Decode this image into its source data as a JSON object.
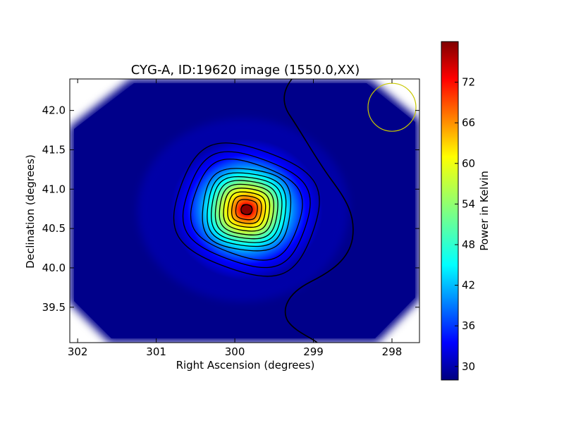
{
  "chart_data": {
    "type": "heatmap",
    "title": "CYG-A, ID:19620 image (1550.0,XX)",
    "xlabel": "Right Ascension (degrees)",
    "ylabel": "Declination (degrees)",
    "xlim": [
      302.1,
      297.65
    ],
    "ylim": [
      39.05,
      42.4
    ],
    "x_axis_inverted": true,
    "xticks": [
      302,
      301,
      300,
      299,
      298
    ],
    "xtick_labels": [
      "302",
      "301",
      "300",
      "299",
      "298"
    ],
    "yticks": [
      39.5,
      40.0,
      40.5,
      41.0,
      41.5,
      42.0
    ],
    "ytick_labels": [
      "39.5",
      "40.0",
      "40.5",
      "41.0",
      "41.5",
      "42.0"
    ],
    "colormap": "jet",
    "colorbar": {
      "label": "Power in Kelvin",
      "range": [
        28,
        78
      ],
      "ticks": [
        30,
        36,
        42,
        48,
        54,
        60,
        66,
        72
      ],
      "tick_labels": [
        "30",
        "36",
        "42",
        "48",
        "54",
        "60",
        "66",
        "72"
      ]
    },
    "peak": {
      "ra": 299.85,
      "dec": 40.74,
      "value": 77
    },
    "background_value": 29,
    "beam_circle": {
      "ra": 298.0,
      "dec": 42.04,
      "color": "#c8c800"
    },
    "contour_color": "#000000",
    "grid": false
  }
}
